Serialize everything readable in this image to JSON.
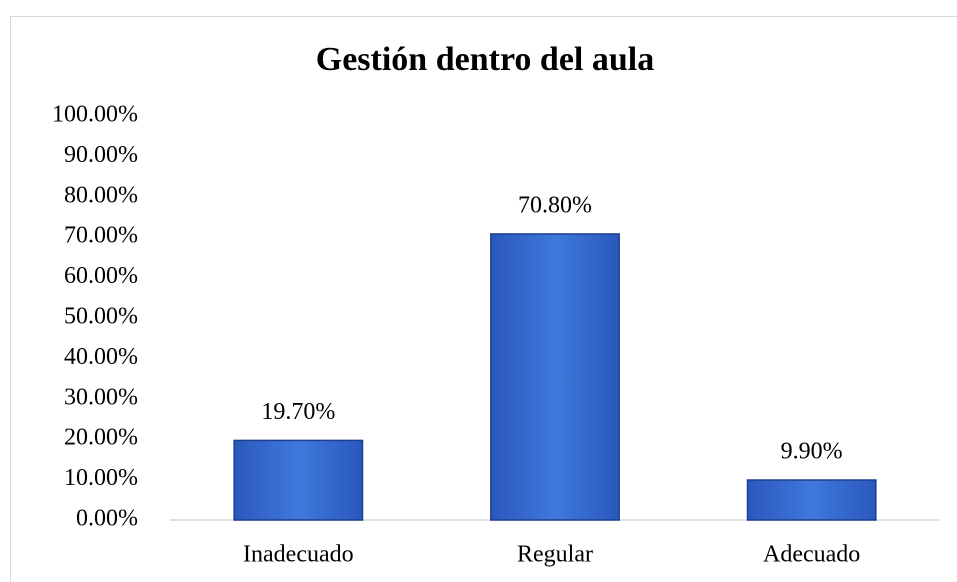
{
  "chart_data": {
    "type": "bar",
    "title": "Gestión dentro del aula",
    "categories": [
      "Inadecuado",
      "Regular",
      "Adecuado"
    ],
    "values": [
      19.7,
      70.8,
      9.9
    ],
    "value_labels": [
      "19.70%",
      "70.80%",
      "9.90%"
    ],
    "color": "#3366cc",
    "ylim": [
      0,
      100
    ],
    "yticks": [
      {
        "value": 0,
        "label": "0.00%"
      },
      {
        "value": 10,
        "label": "10.00%"
      },
      {
        "value": 20,
        "label": "20.00%"
      },
      {
        "value": 30,
        "label": "30.00%"
      },
      {
        "value": 40,
        "label": "40.00%"
      },
      {
        "value": 50,
        "label": "50.00%"
      },
      {
        "value": 60,
        "label": "60.00%"
      },
      {
        "value": 70,
        "label": "70.00%"
      },
      {
        "value": 80,
        "label": "80.00%"
      },
      {
        "value": 90,
        "label": "90.00%"
      },
      {
        "value": 100,
        "label": "100.00%"
      }
    ],
    "grid": false
  }
}
